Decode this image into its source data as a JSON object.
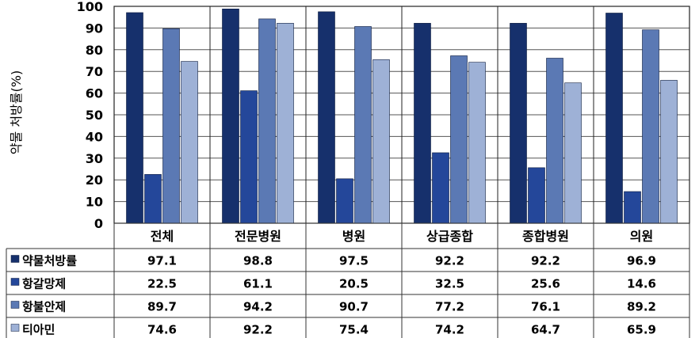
{
  "chart_data": {
    "type": "bar",
    "title": "",
    "xlabel": "",
    "ylabel": "약물 처방률(%)",
    "ylim": [
      0,
      100
    ],
    "yticks": [
      0,
      10,
      20,
      30,
      40,
      50,
      60,
      70,
      80,
      90,
      100
    ],
    "grid": true,
    "legend_placement": "data-table-left",
    "categories": [
      "전체",
      "전문병원",
      "병원",
      "상급종합",
      "종합병원",
      "의원"
    ],
    "series": [
      {
        "name": "약물처방률",
        "color": "#16306c",
        "values": [
          97.1,
          98.8,
          97.5,
          92.2,
          92.2,
          96.9
        ],
        "labels": [
          "97.1",
          "98.8",
          "97.5",
          "92.2",
          "92.2",
          "96.9"
        ]
      },
      {
        "name": "항갈망제",
        "color": "#24479a",
        "values": [
          22.5,
          61.1,
          20.5,
          32.5,
          25.6,
          14.6
        ],
        "labels": [
          "22.5",
          "61.1",
          "20.5",
          "32.5",
          "25.6",
          "14.6"
        ]
      },
      {
        "name": "항불안제",
        "color": "#5b79b4",
        "values": [
          89.7,
          94.2,
          90.7,
          77.2,
          76.1,
          89.2
        ],
        "labels": [
          "89.7",
          "94.2",
          "90.7",
          "77.2",
          "76.1",
          "89.2"
        ]
      },
      {
        "name": "티아민",
        "color": "#9eb1d6",
        "values": [
          74.6,
          92.2,
          75.4,
          74.2,
          64.7,
          65.9
        ],
        "labels": [
          "74.6",
          "92.2",
          "75.4",
          "74.2",
          "64.7",
          "65.9"
        ]
      }
    ]
  }
}
